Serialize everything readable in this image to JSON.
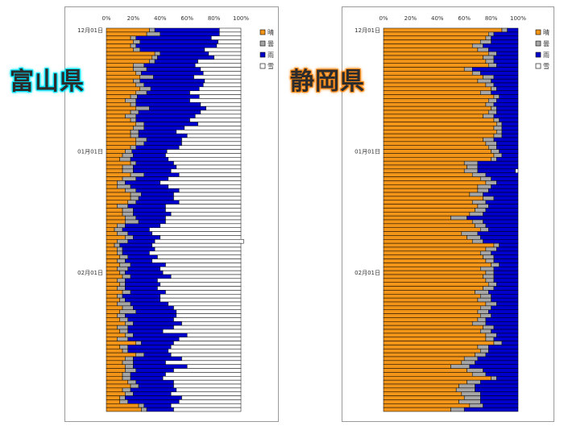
{
  "colors": {
    "sunny": "#f29418",
    "cloudy": "#a6a6a6",
    "rain": "#0000cc",
    "snow": "#ffffff",
    "border": "#000000"
  },
  "left_title": "富山県",
  "right_title": "静岡県",
  "chart_data": [
    {
      "type": "bar",
      "orientation": "horizontal",
      "stacked": "percent",
      "title": "",
      "x_ticks": [
        "0%",
        "20%",
        "40%",
        "60%",
        "80%",
        "100%"
      ],
      "xlim": [
        0,
        100
      ],
      "y_tick_labels": [
        {
          "label": "12月01日",
          "row": 0
        },
        {
          "label": "01月01日",
          "row": 31
        },
        {
          "label": "02月01日",
          "row": 62
        }
      ],
      "grid": false,
      "legend_position": "right",
      "series": [
        {
          "name": "晴",
          "values": [
            32,
            30,
            18,
            20,
            18,
            20,
            36,
            34,
            32,
            20,
            20,
            22,
            25,
            20,
            22,
            25,
            22,
            18,
            14,
            18,
            22,
            18,
            14,
            18,
            22,
            20,
            18,
            18,
            22,
            22,
            18,
            14,
            12,
            10,
            18,
            12,
            12,
            18,
            12,
            8,
            8,
            14,
            18,
            18,
            16,
            8,
            12,
            12,
            14,
            14,
            8,
            6,
            8,
            14,
            8,
            6,
            8,
            8,
            10,
            8,
            10,
            8,
            10,
            12,
            8,
            10,
            8,
            12,
            8,
            10,
            8,
            12,
            10,
            8,
            10,
            14,
            8,
            10,
            14,
            8,
            22,
            10,
            12,
            22,
            14,
            12,
            14,
            14,
            12,
            12,
            16,
            18,
            12,
            14,
            10,
            10,
            24,
            26
          ]
        },
        {
          "name": "曇",
          "values": [
            4,
            10,
            4,
            5,
            4,
            5,
            4,
            4,
            4,
            8,
            10,
            4,
            10,
            5,
            6,
            8,
            8,
            5,
            8,
            4,
            10,
            6,
            8,
            4,
            6,
            8,
            6,
            6,
            8,
            6,
            4,
            5,
            8,
            8,
            4,
            8,
            8,
            10,
            10,
            6,
            10,
            8,
            8,
            6,
            6,
            8,
            8,
            8,
            8,
            10,
            6,
            6,
            8,
            6,
            8,
            4,
            4,
            4,
            6,
            6,
            8,
            8,
            4,
            6,
            6,
            4,
            6,
            6,
            4,
            4,
            10,
            8,
            12,
            6,
            6,
            6,
            8,
            6,
            6,
            8,
            4,
            6,
            4,
            6,
            6,
            8,
            6,
            8,
            6,
            6,
            6,
            6,
            6,
            6,
            4,
            6,
            4,
            4
          ]
        },
        {
          "name": "雨",
          "values": [
            48,
            44,
            56,
            58,
            60,
            48,
            36,
            42,
            32,
            38,
            40,
            46,
            30,
            48,
            44,
            36,
            32,
            46,
            40,
            48,
            42,
            46,
            44,
            40,
            40,
            30,
            28,
            36,
            26,
            28,
            32,
            26,
            24,
            28,
            28,
            32,
            28,
            26,
            24,
            26,
            28,
            32,
            24,
            26,
            32,
            28,
            24,
            28,
            22,
            20,
            26,
            20,
            18,
            20,
            20,
            24,
            24,
            20,
            22,
            20,
            26,
            24,
            28,
            30,
            24,
            26,
            24,
            26,
            28,
            26,
            28,
            30,
            30,
            38,
            34,
            36,
            34,
            26,
            40,
            38,
            24,
            32,
            30,
            20,
            36,
            24,
            40,
            28,
            26,
            24,
            28,
            26,
            34,
            28,
            42,
            38,
            20,
            20
          ]
        },
        {
          "name": "雪",
          "values": [
            16,
            16,
            22,
            17,
            18,
            27,
            24,
            20,
            32,
            34,
            30,
            28,
            35,
            27,
            28,
            31,
            38,
            31,
            38,
            30,
            26,
            30,
            34,
            38,
            32,
            42,
            48,
            40,
            44,
            44,
            46,
            55,
            56,
            54,
            50,
            48,
            52,
            46,
            54,
            60,
            54,
            46,
            50,
            50,
            46,
            56,
            56,
            52,
            56,
            56,
            60,
            68,
            66,
            60,
            66,
            66,
            64,
            68,
            62,
            66,
            56,
            60,
            58,
            52,
            62,
            60,
            62,
            56,
            60,
            60,
            54,
            50,
            48,
            48,
            50,
            44,
            50,
            58,
            40,
            46,
            50,
            52,
            54,
            52,
            44,
            56,
            40,
            50,
            56,
            58,
            50,
            50,
            48,
            52,
            44,
            46,
            52,
            50
          ]
        }
      ]
    },
    {
      "type": "bar",
      "orientation": "horizontal",
      "stacked": "percent",
      "title": "",
      "x_ticks": [
        "0%",
        "20%",
        "40%",
        "60%",
        "80%",
        "100%"
      ],
      "xlim": [
        0,
        100
      ],
      "y_tick_labels": [
        {
          "label": "12月01日",
          "row": 0
        },
        {
          "label": "01月01日",
          "row": 31
        },
        {
          "label": "02月01日",
          "row": 62
        }
      ],
      "grid": false,
      "legend_position": "right",
      "series": [
        {
          "name": "晴",
          "values": [
            88,
            78,
            76,
            72,
            66,
            70,
            78,
            74,
            76,
            78,
            60,
            66,
            74,
            70,
            76,
            80,
            72,
            82,
            78,
            76,
            80,
            78,
            74,
            82,
            84,
            82,
            84,
            82,
            74,
            76,
            78,
            80,
            82,
            80,
            60,
            62,
            60,
            66,
            72,
            76,
            70,
            70,
            64,
            74,
            66,
            70,
            68,
            64,
            50,
            66,
            68,
            72,
            58,
            62,
            66,
            82,
            76,
            72,
            74,
            76,
            80,
            72,
            76,
            74,
            76,
            78,
            74,
            68,
            72,
            70,
            76,
            72,
            70,
            72,
            70,
            66,
            74,
            72,
            76,
            76,
            82,
            70,
            72,
            68,
            60,
            58,
            50,
            62,
            66,
            80,
            62,
            56,
            54,
            58,
            60,
            56,
            64,
            50
          ]
        },
        {
          "name": "曇",
          "values": [
            4,
            4,
            4,
            8,
            8,
            8,
            6,
            8,
            6,
            6,
            6,
            6,
            8,
            10,
            6,
            4,
            8,
            4,
            6,
            6,
            4,
            6,
            8,
            4,
            4,
            6,
            4,
            6,
            8,
            8,
            6,
            6,
            6,
            4,
            10,
            8,
            10,
            10,
            8,
            8,
            10,
            8,
            10,
            8,
            10,
            8,
            8,
            10,
            12,
            8,
            8,
            6,
            12,
            10,
            8,
            4,
            8,
            8,
            8,
            6,
            6,
            10,
            6,
            8,
            6,
            6,
            8,
            10,
            8,
            10,
            8,
            8,
            8,
            8,
            6,
            10,
            8,
            8,
            8,
            6,
            6,
            8,
            6,
            8,
            10,
            10,
            14,
            12,
            10,
            4,
            10,
            12,
            14,
            14,
            12,
            16,
            10,
            10
          ]
        },
        {
          "name": "雨",
          "values": [
            8,
            18,
            20,
            20,
            26,
            22,
            16,
            18,
            18,
            16,
            34,
            28,
            18,
            20,
            18,
            16,
            20,
            14,
            16,
            18,
            16,
            16,
            18,
            14,
            12,
            12,
            12,
            12,
            18,
            16,
            16,
            14,
            12,
            16,
            30,
            30,
            28,
            24,
            20,
            16,
            20,
            22,
            26,
            18,
            24,
            22,
            24,
            26,
            38,
            26,
            24,
            22,
            30,
            28,
            26,
            14,
            16,
            20,
            18,
            18,
            14,
            18,
            18,
            18,
            18,
            16,
            18,
            22,
            20,
            20,
            16,
            20,
            22,
            20,
            24,
            24,
            18,
            20,
            16,
            18,
            12,
            22,
            22,
            24,
            30,
            32,
            36,
            26,
            24,
            16,
            28,
            32,
            32,
            28,
            28,
            28,
            26,
            40
          ]
        },
        {
          "name": "雪",
          "values": [
            0,
            0,
            0,
            0,
            0,
            0,
            0,
            0,
            0,
            0,
            0,
            0,
            0,
            0,
            0,
            0,
            0,
            0,
            0,
            0,
            0,
            0,
            0,
            0,
            0,
            0,
            0,
            0,
            0,
            0,
            0,
            0,
            0,
            0,
            0,
            0,
            2,
            0,
            0,
            0,
            0,
            0,
            0,
            0,
            0,
            0,
            0,
            0,
            0,
            0,
            0,
            0,
            0,
            0,
            0,
            0,
            0,
            0,
            0,
            0,
            0,
            0,
            0,
            0,
            0,
            0,
            0,
            0,
            0,
            0,
            0,
            0,
            0,
            0,
            0,
            0,
            0,
            0,
            0,
            0,
            0,
            0,
            0,
            0,
            0,
            0,
            0,
            0,
            0,
            0,
            0,
            0,
            0,
            0,
            0,
            0,
            0,
            0
          ]
        }
      ]
    }
  ]
}
